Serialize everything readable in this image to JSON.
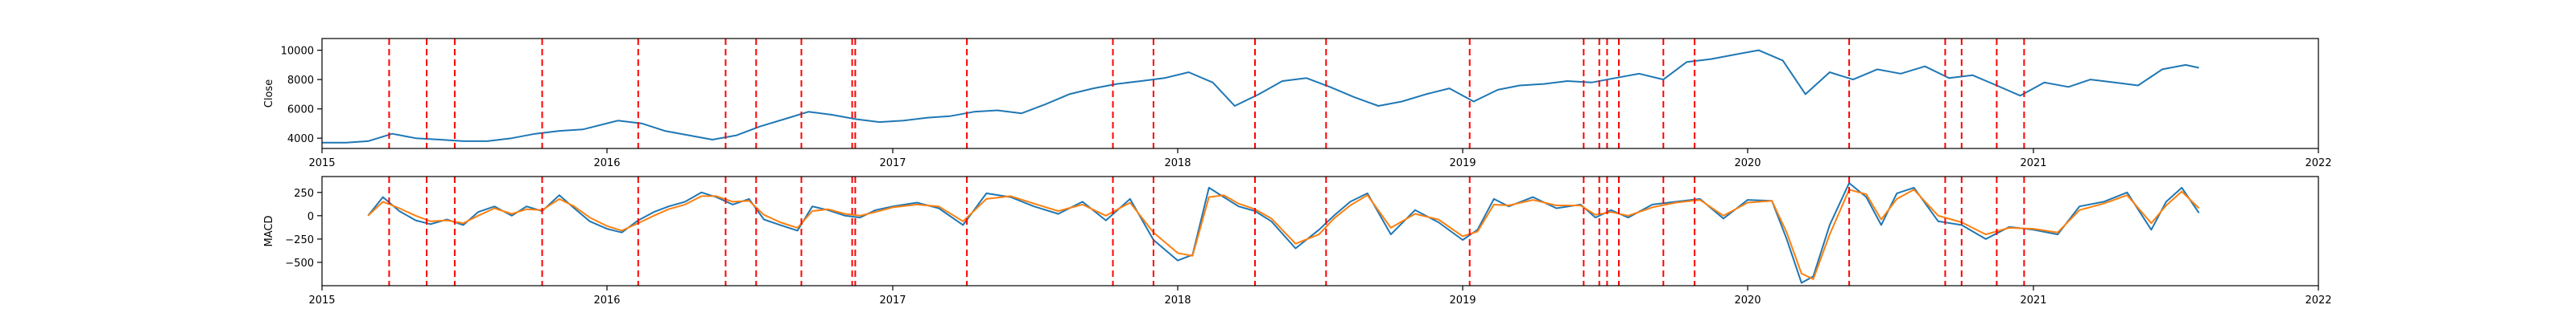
{
  "chart_data": [
    {
      "type": "line",
      "ylabel": "Close",
      "xlim": [
        "2015-01-01",
        "2022-01-01"
      ],
      "ylim": [
        3300,
        10800
      ],
      "yticks": [
        4000,
        6000,
        8000,
        10000
      ],
      "ytick_labels": [
        "4000",
        "6000",
        "8000",
        "10000"
      ],
      "xticks": [
        "2015-01-01",
        "2016-01-01",
        "2017-01-01",
        "2018-01-01",
        "2019-01-01",
        "2020-01-01",
        "2021-01-01",
        "2022-01-01"
      ],
      "xtick_labels": [
        "2015",
        "2016",
        "2017",
        "2018",
        "2019",
        "2020",
        "2021",
        "2022"
      ],
      "grid": false,
      "series": [
        {
          "color": "#1f77b4",
          "x": [
            "2015-01-01",
            "2015-02-01",
            "2015-03-01",
            "2015-04-01",
            "2015-05-01",
            "2015-06-01",
            "2015-07-01",
            "2015-08-01",
            "2015-09-01",
            "2015-10-01",
            "2015-11-01",
            "2015-12-01",
            "2016-01-15",
            "2016-02-15",
            "2016-03-15",
            "2016-04-15",
            "2016-05-15",
            "2016-06-15",
            "2016-07-15",
            "2016-08-15",
            "2016-09-15",
            "2016-10-15",
            "2016-11-15",
            "2016-12-15",
            "2017-01-15",
            "2017-02-15",
            "2017-03-15",
            "2017-04-15",
            "2017-05-15",
            "2017-06-15",
            "2017-07-15",
            "2017-08-15",
            "2017-09-15",
            "2017-10-15",
            "2017-11-15",
            "2017-12-15",
            "2018-01-15",
            "2018-02-15",
            "2018-03-15",
            "2018-04-15",
            "2018-05-15",
            "2018-06-15",
            "2018-07-15",
            "2018-08-15",
            "2018-09-15",
            "2018-10-15",
            "2018-11-15",
            "2018-12-15",
            "2019-01-15",
            "2019-02-15",
            "2019-03-15",
            "2019-04-15",
            "2019-05-15",
            "2019-06-15",
            "2019-07-15",
            "2019-08-15",
            "2019-09-15",
            "2019-10-15",
            "2019-11-15",
            "2019-12-15",
            "2020-01-15",
            "2020-02-15",
            "2020-03-15",
            "2020-04-15",
            "2020-05-15",
            "2020-06-15",
            "2020-07-15",
            "2020-08-15",
            "2020-09-15",
            "2020-10-15",
            "2020-11-15",
            "2020-12-15",
            "2021-01-15",
            "2021-02-15",
            "2021-03-15",
            "2021-04-15",
            "2021-05-15",
            "2021-06-15",
            "2021-07-15",
            "2021-08-01"
          ],
          "y": [
            3700,
            3700,
            3800,
            4300,
            4000,
            3900,
            3800,
            3800,
            4000,
            4300,
            4500,
            4600,
            5200,
            5000,
            4500,
            4200,
            3900,
            4200,
            4800,
            5300,
            5800,
            5600,
            5300,
            5100,
            5200,
            5400,
            5500,
            5800,
            5900,
            5700,
            6300,
            7000,
            7400,
            7700,
            7900,
            8100,
            8500,
            7800,
            6200,
            7000,
            7900,
            8100,
            7500,
            6800,
            6200,
            6500,
            7000,
            7400,
            6500,
            7300,
            7600,
            7700,
            7900,
            7800,
            8100,
            8400,
            8000,
            9200,
            9400,
            9700,
            10000,
            9300,
            7000,
            8500,
            8000,
            8700,
            8400,
            8900,
            8100,
            8300,
            7600,
            6900,
            7800,
            7500,
            8000,
            7800,
            7600,
            8700,
            9000,
            8800
          ]
        }
      ],
      "vlines": {
        "color": "#ff0000",
        "style": "dashed",
        "dates": [
          "2015-03-28",
          "2015-05-15",
          "2015-06-20",
          "2015-10-10",
          "2016-02-10",
          "2016-06-01",
          "2016-07-10",
          "2016-09-06",
          "2016-11-10",
          "2016-11-14",
          "2017-04-06",
          "2017-10-10",
          "2017-12-01",
          "2018-04-10",
          "2018-07-10",
          "2019-01-10",
          "2019-06-05",
          "2019-06-25",
          "2019-07-05",
          "2019-07-20",
          "2019-09-15",
          "2019-10-25",
          "2020-05-10",
          "2020-09-10",
          "2020-10-01",
          "2020-11-15",
          "2020-12-20"
        ]
      }
    },
    {
      "type": "line",
      "ylabel": "MACD",
      "xlim": [
        "2015-01-01",
        "2022-01-01"
      ],
      "ylim": [
        -750,
        420
      ],
      "yticks": [
        -500,
        -250,
        0,
        250
      ],
      "ytick_labels": [
        "−500",
        "−250",
        "0",
        "250"
      ],
      "xticks": [
        "2015-01-01",
        "2016-01-01",
        "2017-01-01",
        "2018-01-01",
        "2019-01-01",
        "2020-01-01",
        "2021-01-01",
        "2022-01-01"
      ],
      "xtick_labels": [
        "2015",
        "2016",
        "2017",
        "2018",
        "2019",
        "2020",
        "2021",
        "2022"
      ],
      "grid": false,
      "series": [
        {
          "color": "#1f77b4",
          "x": [
            "2015-03-01",
            "2015-03-20",
            "2015-04-10",
            "2015-05-01",
            "2015-05-20",
            "2015-06-10",
            "2015-07-01",
            "2015-07-20",
            "2015-08-10",
            "2015-09-01",
            "2015-09-20",
            "2015-10-10",
            "2015-11-01",
            "2015-11-20",
            "2015-12-10",
            "2016-01-01",
            "2016-01-20",
            "2016-02-10",
            "2016-03-01",
            "2016-03-20",
            "2016-04-10",
            "2016-05-01",
            "2016-05-20",
            "2016-06-10",
            "2016-07-01",
            "2016-07-20",
            "2016-08-10",
            "2016-09-01",
            "2016-09-20",
            "2016-10-10",
            "2016-11-01",
            "2016-11-20",
            "2016-12-10",
            "2017-01-01",
            "2017-02-01",
            "2017-03-01",
            "2017-04-01",
            "2017-05-01",
            "2017-06-01",
            "2017-07-01",
            "2017-08-01",
            "2017-09-01",
            "2017-10-01",
            "2017-11-01",
            "2017-12-01",
            "2018-01-01",
            "2018-01-20",
            "2018-02-10",
            "2018-03-01",
            "2018-03-20",
            "2018-04-10",
            "2018-05-01",
            "2018-06-01",
            "2018-07-01",
            "2018-07-20",
            "2018-08-10",
            "2018-09-01",
            "2018-10-01",
            "2018-11-01",
            "2018-12-01",
            "2019-01-01",
            "2019-01-20",
            "2019-02-10",
            "2019-03-01",
            "2019-04-01",
            "2019-05-01",
            "2019-06-01",
            "2019-06-20",
            "2019-07-10",
            "2019-08-01",
            "2019-09-01",
            "2019-10-01",
            "2019-11-01",
            "2019-12-01",
            "2020-01-01",
            "2020-02-01",
            "2020-02-20",
            "2020-03-10",
            "2020-03-25",
            "2020-04-15",
            "2020-05-10",
            "2020-06-01",
            "2020-06-20",
            "2020-07-10",
            "2020-08-01",
            "2020-09-01",
            "2020-10-01",
            "2020-11-01",
            "2020-12-01",
            "2021-01-01",
            "2021-02-01",
            "2021-03-01",
            "2021-04-01",
            "2021-05-01",
            "2021-06-01",
            "2021-06-20",
            "2021-07-10",
            "2021-08-01"
          ],
          "y": [
            0,
            200,
            50,
            -50,
            -90,
            -40,
            -100,
            40,
            100,
            0,
            100,
            50,
            220,
            80,
            -60,
            -140,
            -180,
            -50,
            40,
            100,
            150,
            250,
            200,
            120,
            180,
            -40,
            -100,
            -160,
            100,
            60,
            0,
            -20,
            60,
            100,
            140,
            80,
            -100,
            240,
            200,
            100,
            20,
            150,
            -50,
            180,
            -260,
            -480,
            -420,
            300,
            200,
            100,
            50,
            -60,
            -350,
            -150,
            0,
            150,
            240,
            -200,
            60,
            -70,
            -260,
            -150,
            180,
            100,
            200,
            80,
            120,
            -20,
            60,
            -20,
            120,
            150,
            180,
            -30,
            170,
            160,
            -250,
            -720,
            -650,
            -100,
            350,
            200,
            -100,
            240,
            300,
            -60,
            -100,
            -250,
            -120,
            -150,
            -200,
            100,
            150,
            250,
            -150,
            150,
            300,
            30
          ]
        },
        {
          "color": "#ff7f0e",
          "x": [
            "2015-03-01",
            "2015-03-20",
            "2015-04-10",
            "2015-05-01",
            "2015-05-20",
            "2015-06-10",
            "2015-07-01",
            "2015-07-20",
            "2015-08-10",
            "2015-09-01",
            "2015-09-20",
            "2015-10-10",
            "2015-11-01",
            "2015-11-20",
            "2015-12-10",
            "2016-01-01",
            "2016-01-20",
            "2016-02-10",
            "2016-03-01",
            "2016-03-20",
            "2016-04-10",
            "2016-05-01",
            "2016-05-20",
            "2016-06-10",
            "2016-07-01",
            "2016-07-20",
            "2016-08-10",
            "2016-09-01",
            "2016-09-20",
            "2016-10-10",
            "2016-11-01",
            "2016-11-20",
            "2016-12-10",
            "2017-01-01",
            "2017-02-01",
            "2017-03-01",
            "2017-04-01",
            "2017-05-01",
            "2017-06-01",
            "2017-07-01",
            "2017-08-01",
            "2017-09-01",
            "2017-10-01",
            "2017-11-01",
            "2017-12-01",
            "2018-01-01",
            "2018-01-20",
            "2018-02-10",
            "2018-03-01",
            "2018-03-20",
            "2018-04-10",
            "2018-05-01",
            "2018-06-01",
            "2018-07-01",
            "2018-07-20",
            "2018-08-10",
            "2018-09-01",
            "2018-10-01",
            "2018-11-01",
            "2018-12-01",
            "2019-01-01",
            "2019-01-20",
            "2019-02-10",
            "2019-03-01",
            "2019-04-01",
            "2019-05-01",
            "2019-06-01",
            "2019-06-20",
            "2019-07-10",
            "2019-08-01",
            "2019-09-01",
            "2019-10-01",
            "2019-11-01",
            "2019-12-01",
            "2020-01-01",
            "2020-02-01",
            "2020-02-20",
            "2020-03-10",
            "2020-03-25",
            "2020-04-15",
            "2020-05-10",
            "2020-06-01",
            "2020-06-20",
            "2020-07-10",
            "2020-08-01",
            "2020-09-01",
            "2020-10-01",
            "2020-11-01",
            "2020-12-01",
            "2021-01-01",
            "2021-02-01",
            "2021-03-01",
            "2021-04-01",
            "2021-05-01",
            "2021-06-01",
            "2021-06-20",
            "2021-07-10",
            "2021-08-01"
          ],
          "y": [
            0,
            150,
            80,
            0,
            -60,
            -50,
            -80,
            0,
            80,
            20,
            70,
            60,
            180,
            100,
            -20,
            -110,
            -160,
            -80,
            0,
            70,
            120,
            210,
            210,
            150,
            160,
            10,
            -70,
            -130,
            50,
            70,
            20,
            0,
            40,
            90,
            120,
            100,
            -60,
            180,
            210,
            130,
            50,
            120,
            0,
            140,
            -180,
            -400,
            -430,
            200,
            220,
            130,
            70,
            -30,
            -300,
            -200,
            -30,
            110,
            220,
            -130,
            20,
            -40,
            -220,
            -170,
            120,
            110,
            170,
            110,
            110,
            10,
            40,
            0,
            90,
            140,
            170,
            0,
            140,
            160,
            -180,
            -620,
            -680,
            -200,
            280,
            230,
            -40,
            180,
            280,
            0,
            -70,
            -200,
            -130,
            -140,
            -180,
            60,
            130,
            220,
            -80,
            110,
            260,
            80
          ]
        }
      ],
      "vlines": {
        "color": "#ff0000",
        "style": "dashed",
        "dates": [
          "2015-03-28",
          "2015-05-15",
          "2015-06-20",
          "2015-10-10",
          "2016-02-10",
          "2016-06-01",
          "2016-07-10",
          "2016-09-06",
          "2016-11-10",
          "2016-11-14",
          "2017-04-06",
          "2017-10-10",
          "2017-12-01",
          "2018-04-10",
          "2018-07-10",
          "2019-01-10",
          "2019-06-05",
          "2019-06-25",
          "2019-07-05",
          "2019-07-20",
          "2019-09-15",
          "2019-10-25",
          "2020-05-10",
          "2020-09-10",
          "2020-10-01",
          "2020-11-15",
          "2020-12-20"
        ]
      }
    }
  ]
}
